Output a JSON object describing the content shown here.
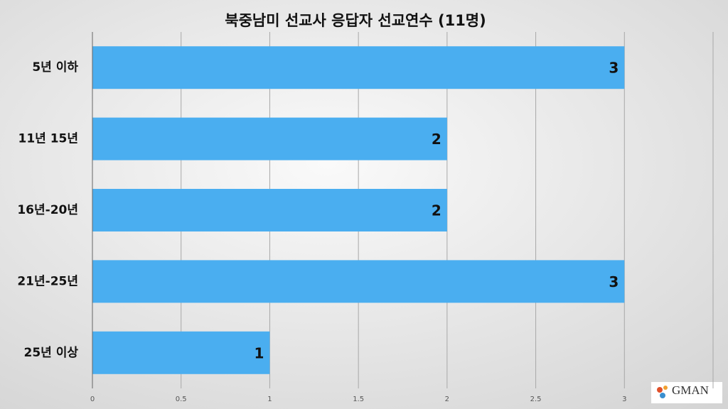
{
  "chart_data": {
    "type": "hbar",
    "title": "북중남미 선교사 응답자 선교연수 (11명)",
    "categories": [
      "5년 이하",
      "11년 15년",
      "16년-20년",
      "21년-25년",
      "25년 이상"
    ],
    "values": [
      3,
      2,
      2,
      3,
      1
    ],
    "color": "#4aaef0",
    "xlim": [
      0,
      3.5
    ],
    "xticks": [
      0,
      0.5,
      1,
      1.5,
      2,
      2.5,
      3
    ],
    "grid": true
  },
  "logo": "GMAN"
}
